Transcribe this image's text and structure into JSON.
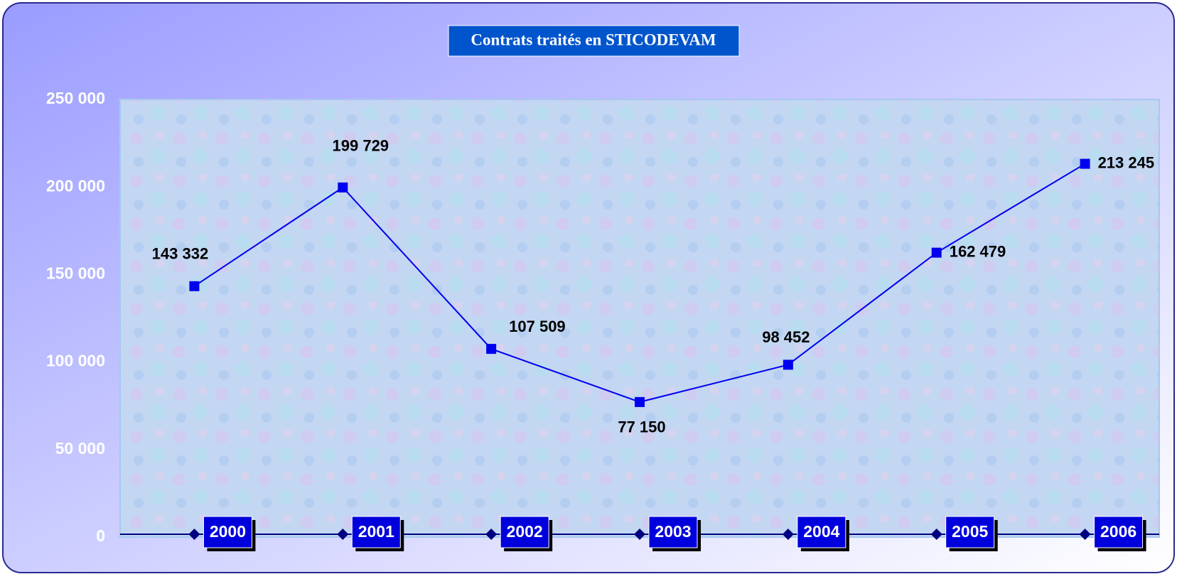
{
  "chart_data": {
    "type": "line",
    "title": "Contrats traités en STICODEVAM",
    "categories": [
      "2000",
      "2001",
      "2002",
      "2003",
      "2004",
      "2005",
      "2006"
    ],
    "values": [
      143332,
      199729,
      107509,
      77150,
      98452,
      162479,
      213245
    ],
    "value_labels": [
      "143 332",
      "199 729",
      "107 509",
      "77 150",
      "98 452",
      "162 479",
      "213 245"
    ],
    "color": "#0000ee",
    "ylim": [
      0,
      250000
    ],
    "yticks": [
      0,
      {
        "value": 50000,
        "label": "50 000"
      },
      {
        "value": 100000,
        "label": "100 000"
      },
      {
        "value": 150000,
        "label": "150 000"
      },
      {
        "value": 200000,
        "label": "200 000"
      },
      {
        "value": 250000,
        "label": "250 000"
      }
    ]
  }
}
